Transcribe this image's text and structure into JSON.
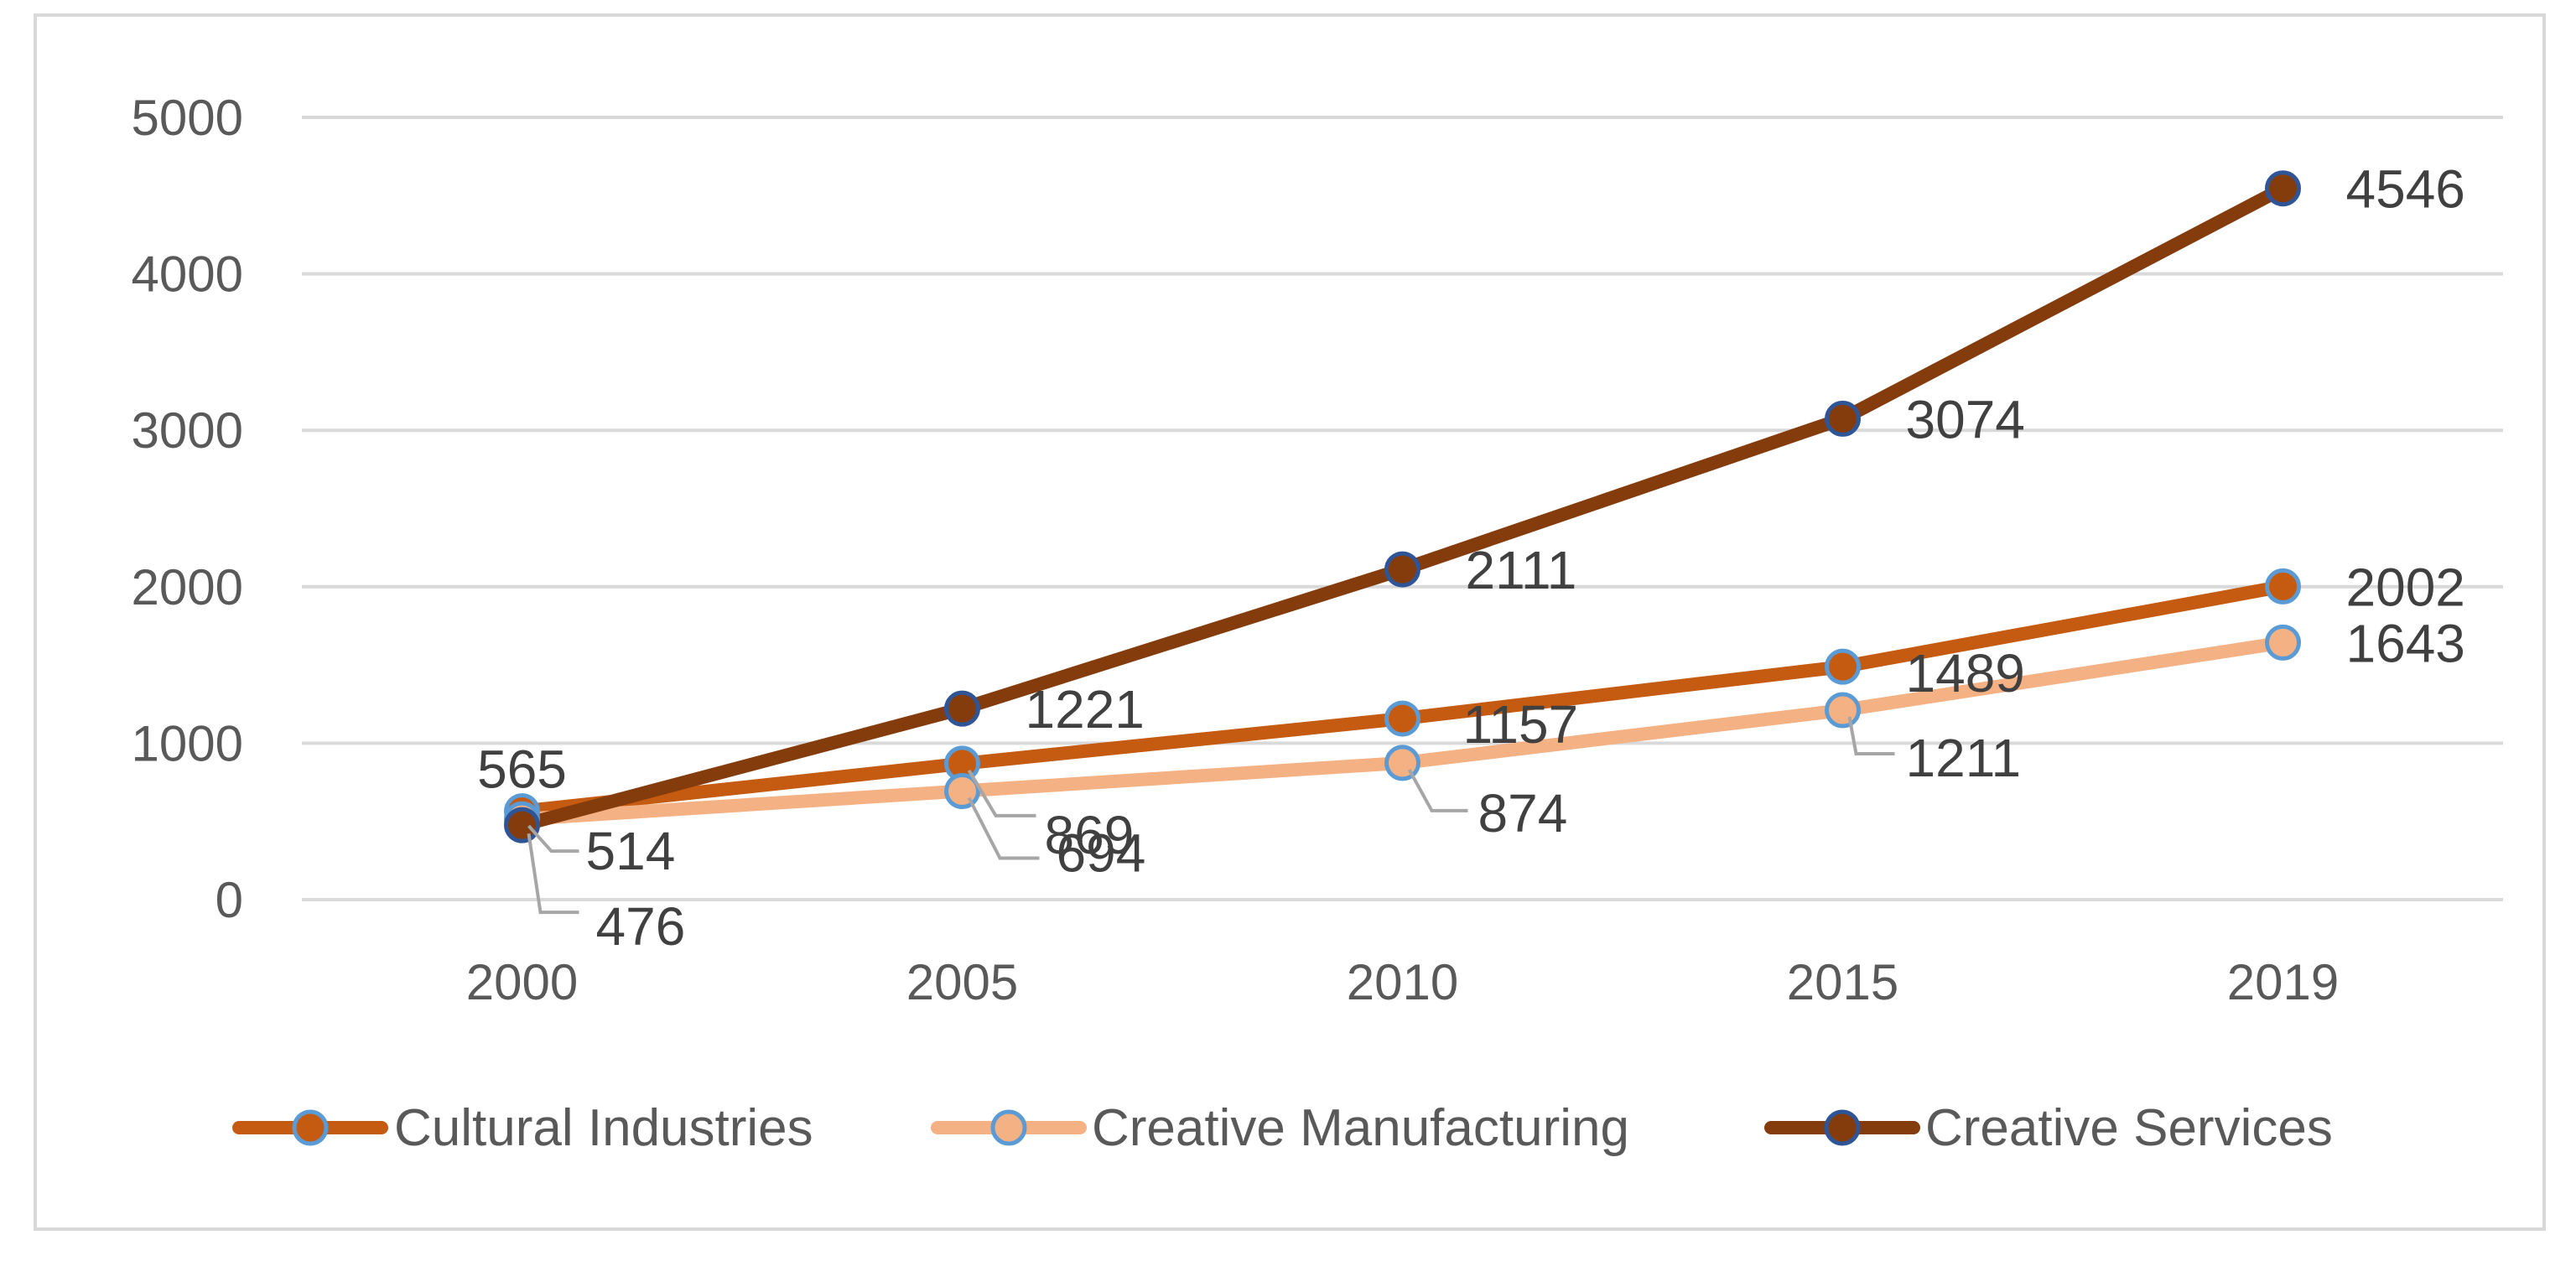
{
  "chart_data": {
    "type": "line",
    "title": "",
    "xlabel": "",
    "ylabel": "",
    "categories": [
      "2000",
      "2005",
      "2010",
      "2015",
      "2019"
    ],
    "y_ticks": [
      "0",
      "1000",
      "2000",
      "3000",
      "4000",
      "5000"
    ],
    "ylim": [
      0,
      5000
    ],
    "grid": true,
    "legend_position": "bottom",
    "series": [
      {
        "name": "Cultural Industries",
        "values": [
          565,
          869,
          1157,
          1489,
          2002
        ],
        "labels": [
          "565",
          "869",
          "1157",
          "1489",
          "2002"
        ],
        "line_color": "#c55a11",
        "marker_fill": "#c55a11",
        "marker_edge": "#5b9bd5"
      },
      {
        "name": "Creative Manufacturing",
        "values": [
          514,
          694,
          874,
          1211,
          1643
        ],
        "labels": [
          "514",
          "694",
          "874",
          "1211",
          "1643"
        ],
        "line_color": "#f4b183",
        "marker_fill": "#f4b183",
        "marker_edge": "#5b9bd5"
      },
      {
        "name": "Creative Services",
        "values": [
          476,
          1221,
          2111,
          3074,
          4546
        ],
        "labels": [
          "476",
          "1221",
          "2111",
          "3074",
          "4546"
        ],
        "line_color": "#843c0c",
        "marker_fill": "#843c0c",
        "marker_edge": "#2f5597"
      }
    ]
  }
}
